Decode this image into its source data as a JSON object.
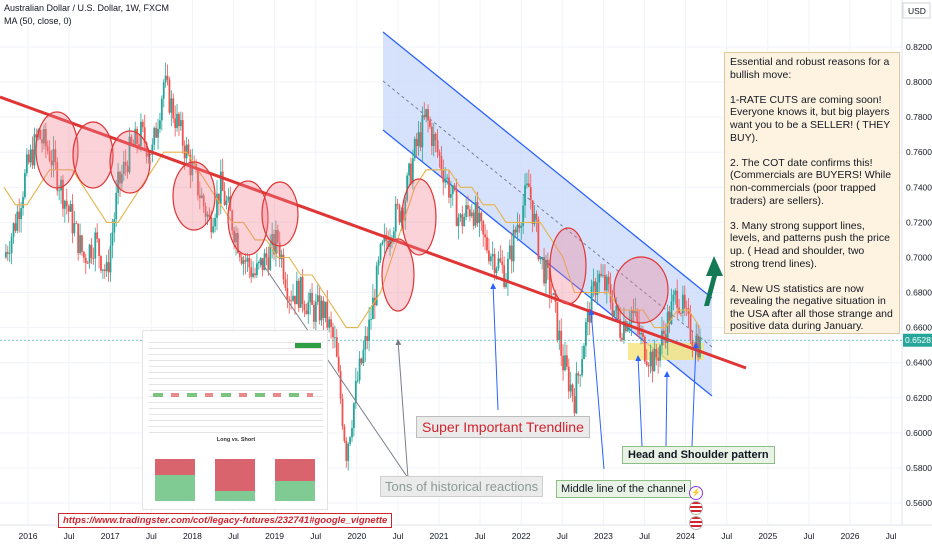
{
  "header": {
    "symbol_line": "Australian Dollar / U.S. Dollar, 1W, FXCM",
    "indicator_line": "MA (50, close, 0)",
    "currency": "USD"
  },
  "price_axis": {
    "ticks": [
      "0.82000",
      "0.80000",
      "0.78000",
      "0.76000",
      "0.74000",
      "0.72000",
      "0.70000",
      "0.68000",
      "0.66000",
      "0.64000",
      "0.62000",
      "0.60000",
      "0.58000",
      "0.56000"
    ],
    "tick_values": [
      0.82,
      0.8,
      0.78,
      0.76,
      0.74,
      0.72,
      0.7,
      0.68,
      0.66,
      0.64,
      0.62,
      0.6,
      0.58,
      0.56
    ],
    "last_price": "0.65281",
    "last_value": 0.65281
  },
  "time_axis": {
    "labels": [
      "2016",
      "Jul",
      "2017",
      "Jul",
      "2018",
      "Jul",
      "2019",
      "Jul",
      "2020",
      "Jul",
      "2021",
      "Jul",
      "2022",
      "Jul",
      "2023",
      "Jul",
      "2024",
      "Jul",
      "2025",
      "Jul",
      "2026",
      "Jul"
    ]
  },
  "annotations": {
    "note_text": "Essential and robust reasons for a bullish move:\n\n1-RATE CUTS are coming soon! Everyone knows it, but big players want you to be a SELLER! ( THEY BUY).\n\n2. The COT date confirms this! (Commercials are BUYERS! While non-commercials (poor trapped traders) are sellers).\n\n3. Many strong support lines, levels, and patterns push the price up. ( Head and shoulder, two strong trend lines).\n\n4. New US statistics are now revealing the negative situation in the USA after all those strange and positive data during January.",
    "trendline_label": "Super Important Trendline",
    "historical_label": "Tons of historical reactions",
    "middle_line_label": "Middle line of the channel",
    "hs_label": "Head and Shoulder pattern",
    "url": "https://www.tradingster.com/cot/legacy-futures/232741#google_vignette"
  },
  "cot_panel": {
    "chart_title": "Long vs. Short"
  },
  "chart_data": {
    "type": "line",
    "title": "",
    "xlabel": "",
    "ylabel": "USD",
    "ylim": [
      0.545,
      0.83
    ],
    "grid": true,
    "series": [
      {
        "values": [
          0.7,
          0.72,
          0.75,
          0.77,
          0.76,
          0.74,
          0.72,
          0.7,
          0.71,
          0.69,
          0.74,
          0.76,
          0.77,
          0.76,
          0.8,
          0.78,
          0.76,
          0.74,
          0.72,
          0.74,
          0.72,
          0.7,
          0.69,
          0.7,
          0.71,
          0.68,
          0.68,
          0.67,
          0.67,
          0.65,
          0.59,
          0.63,
          0.66,
          0.7,
          0.72,
          0.73,
          0.76,
          0.78,
          0.76,
          0.74,
          0.72,
          0.73,
          0.71,
          0.7,
          0.69,
          0.72,
          0.74,
          0.7,
          0.68,
          0.64,
          0.62,
          0.66,
          0.69,
          0.68,
          0.66,
          0.67,
          0.65,
          0.64,
          0.66,
          0.68,
          0.66,
          0.65
        ]
      },
      {
        "name": "MA (50, close, 0)",
        "values": [
          0.74,
          0.73,
          0.73,
          0.74,
          0.75,
          0.75,
          0.75,
          0.74,
          0.73,
          0.72,
          0.72,
          0.73,
          0.74,
          0.75,
          0.76,
          0.76,
          0.76,
          0.75,
          0.74,
          0.73,
          0.72,
          0.72,
          0.71,
          0.71,
          0.7,
          0.7,
          0.69,
          0.69,
          0.68,
          0.67,
          0.66,
          0.66,
          0.67,
          0.68,
          0.7,
          0.72,
          0.74,
          0.75,
          0.75,
          0.75,
          0.74,
          0.74,
          0.73,
          0.73,
          0.72,
          0.72,
          0.72,
          0.72,
          0.71,
          0.7,
          0.68,
          0.68,
          0.68,
          0.68,
          0.67,
          0.67,
          0.67,
          0.66,
          0.66,
          0.67,
          0.67,
          0.66
        ]
      }
    ]
  }
}
